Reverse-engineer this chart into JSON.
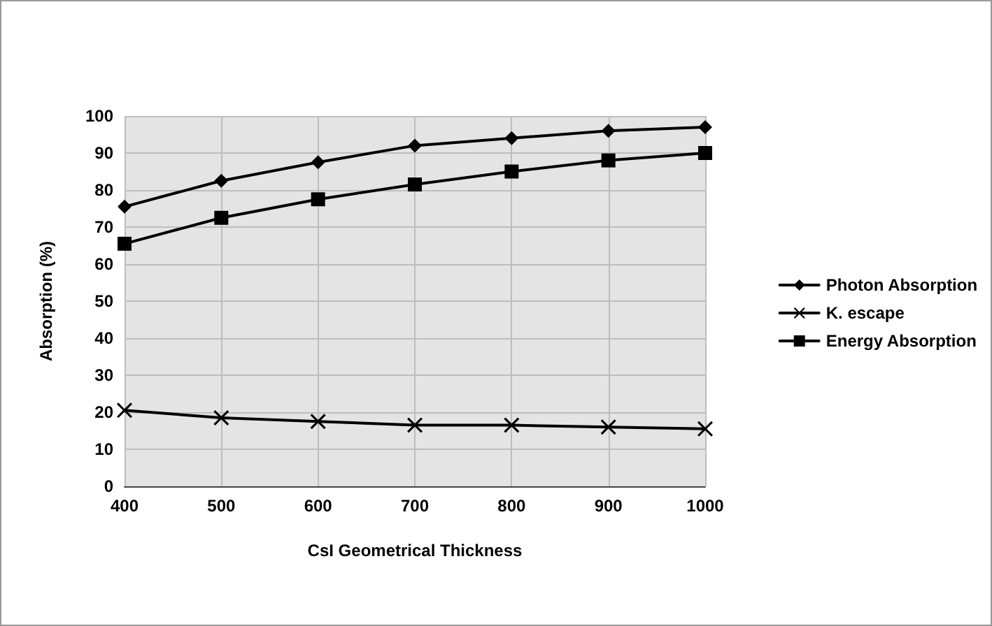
{
  "chart_data": {
    "type": "line",
    "xlabel": "CsI Geometrical Thickness",
    "ylabel": "Absorption (%)",
    "x": [
      400,
      500,
      600,
      700,
      800,
      900,
      1000
    ],
    "xlim": [
      400,
      1000
    ],
    "xticks": [
      400,
      500,
      600,
      700,
      800,
      900,
      1000
    ],
    "ylim": [
      0,
      100
    ],
    "yticks": [
      0,
      10,
      20,
      30,
      40,
      50,
      60,
      70,
      80,
      90,
      100
    ],
    "grid": true,
    "legend": "right",
    "line_style": "solid",
    "series": [
      {
        "name": "Photon Absorption",
        "color": "#000000",
        "marker": "diamond",
        "values": [
          75.5,
          82.5,
          87.5,
          92,
          94,
          96,
          97
        ]
      },
      {
        "name": "K. escape",
        "color": "#000000",
        "marker": "cross",
        "values": [
          20.5,
          18.5,
          17.5,
          16.5,
          16.5,
          16,
          15.5
        ]
      },
      {
        "name": "Energy Absorption",
        "color": "#000000",
        "marker": "square",
        "values": [
          65.5,
          72.5,
          77.5,
          81.5,
          85,
          88,
          90
        ]
      }
    ]
  }
}
